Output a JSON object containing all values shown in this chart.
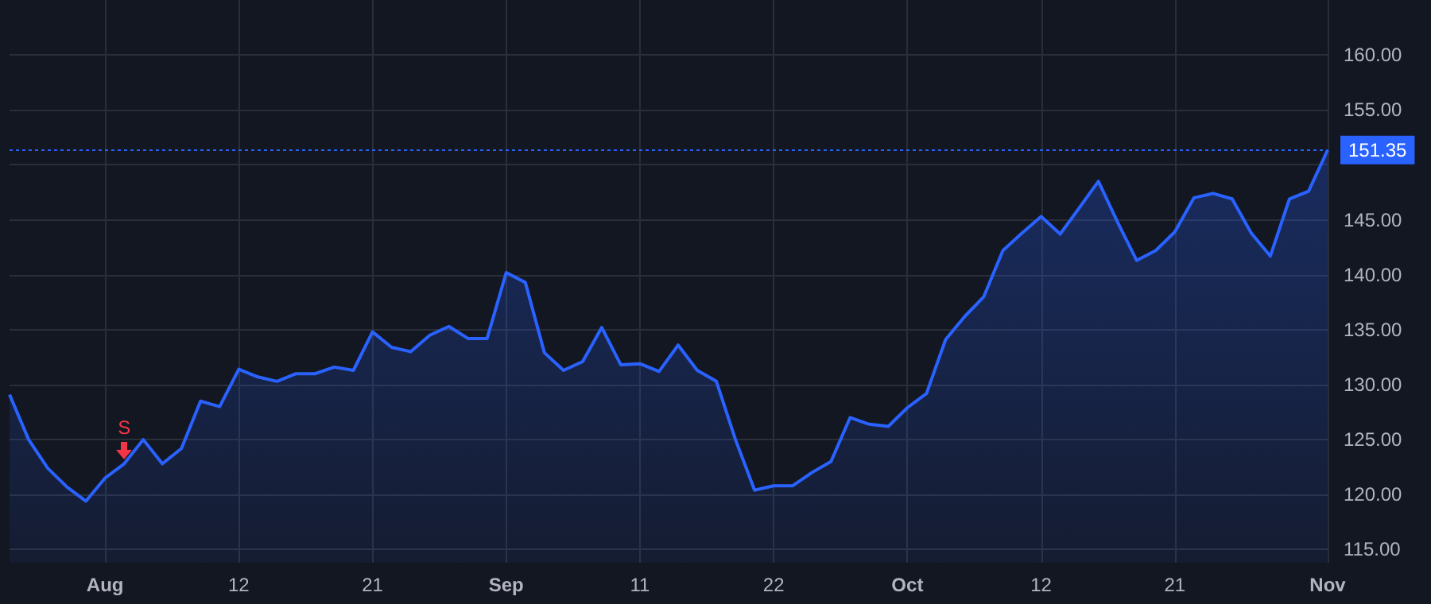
{
  "chart_data": {
    "type": "area",
    "categories": [
      null,
      null,
      null,
      null,
      null,
      "Aug",
      null,
      null,
      null,
      null,
      null,
      null,
      "12",
      null,
      null,
      null,
      null,
      null,
      null,
      "21",
      null,
      null,
      null,
      null,
      null,
      null,
      "Sep",
      null,
      null,
      null,
      null,
      null,
      null,
      "11",
      null,
      null,
      null,
      null,
      null,
      null,
      "22",
      null,
      null,
      null,
      null,
      null,
      null,
      "Oct",
      null,
      null,
      null,
      null,
      null,
      null,
      "12",
      null,
      null,
      null,
      null,
      null,
      null,
      "21",
      null,
      null,
      null,
      null,
      null,
      null,
      null,
      "Nov"
    ],
    "series": [
      {
        "color": "#2962ff",
        "values": [
          129.1,
          125.0,
          122.4,
          120.7,
          119.4,
          121.5,
          122.8,
          125.0,
          122.8,
          124.2,
          128.5,
          128.0,
          131.4,
          130.7,
          130.3,
          131.0,
          131.0,
          131.6,
          131.3,
          134.8,
          133.4,
          133.0,
          134.5,
          135.3,
          134.2,
          134.2,
          140.2,
          139.3,
          132.9,
          131.3,
          132.1,
          135.2,
          131.8,
          131.9,
          131.2,
          133.6,
          131.3,
          130.3,
          125.0,
          120.4,
          120.8,
          120.8,
          122.0,
          123.0,
          127.0,
          126.4,
          126.2,
          127.9,
          129.2,
          134.1,
          136.2,
          138.0,
          142.2,
          143.8,
          145.3,
          143.7,
          146.1,
          148.5,
          144.8,
          141.3,
          142.2,
          143.9,
          147.0,
          147.4,
          146.9,
          143.8,
          141.7,
          146.9,
          147.6,
          151.35
        ]
      }
    ],
    "ylim": [
      113.8,
      165
    ],
    "yticks": [
      {
        "value": 115,
        "label": "115.00"
      },
      {
        "value": 120,
        "label": "120.00"
      },
      {
        "value": 125,
        "label": "125.00"
      },
      {
        "value": 130,
        "label": "130.00"
      },
      {
        "value": 135,
        "label": "135.00"
      },
      {
        "value": 140,
        "label": "140.00"
      },
      {
        "value": 145,
        "label": "145.00"
      },
      {
        "value": 150,
        "label": null
      },
      {
        "value": 155,
        "label": "155.00"
      },
      {
        "value": 160,
        "label": "160.00"
      }
    ],
    "grid": true,
    "ref_lines": [
      {
        "axis": "y",
        "value": 151.35,
        "label": "151.35",
        "color": "#2962ff",
        "line_style": "dotted"
      }
    ],
    "annotations": [
      {
        "text": "S",
        "y": 122.8
      }
    ]
  }
}
